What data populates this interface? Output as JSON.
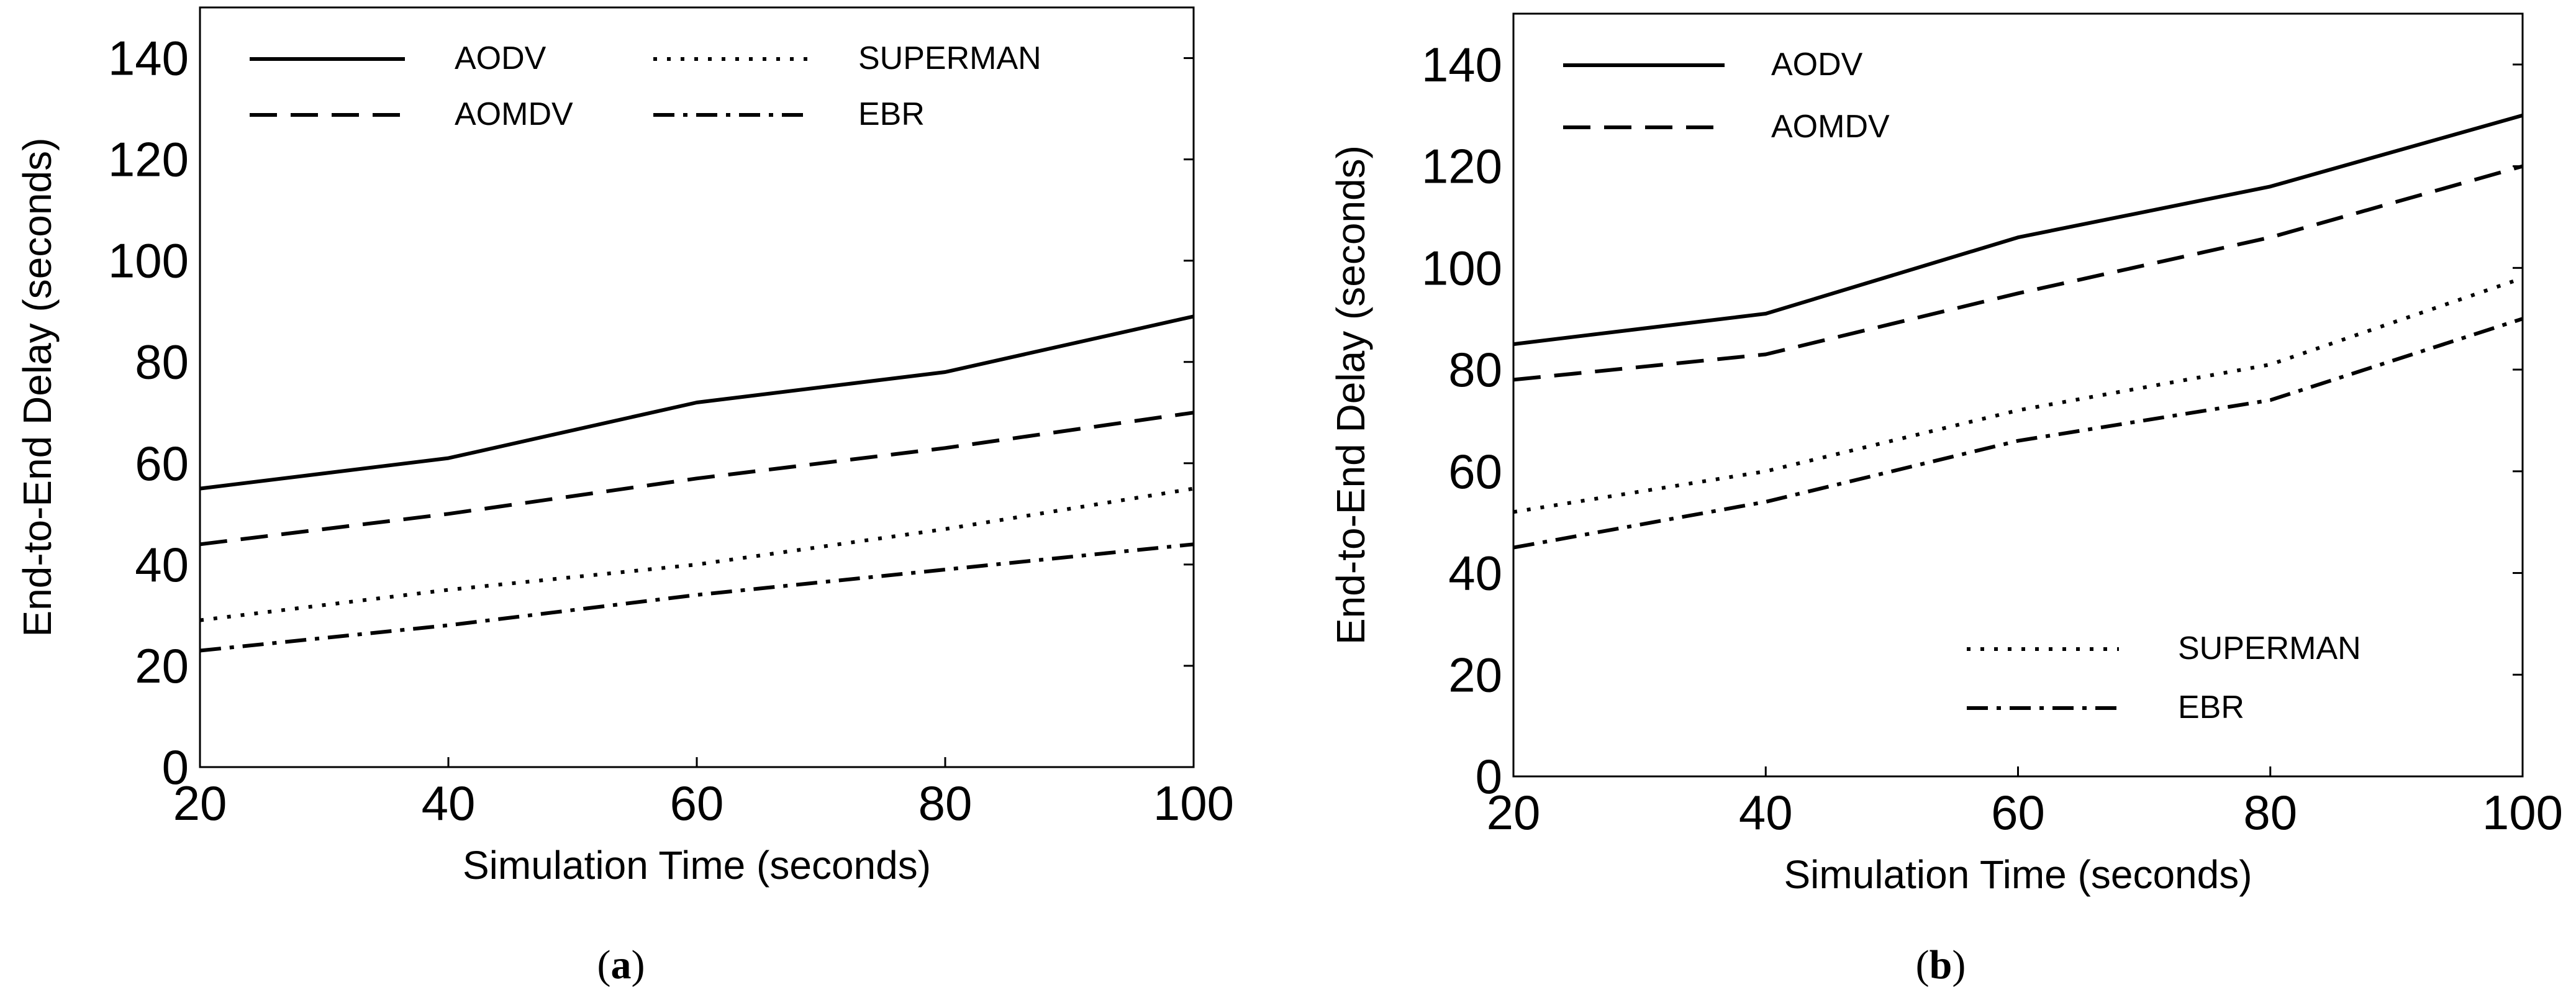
{
  "chart_data": [
    {
      "panel": "a",
      "type": "line",
      "caption": {
        "open": "(",
        "letter": "a",
        "close": ")"
      },
      "xlabel": "Simulation Time (seconds)",
      "ylabel": "End-to-End Delay (seconds)",
      "x": [
        20,
        40,
        60,
        80,
        100
      ],
      "xlim": [
        20,
        100
      ],
      "ylim": [
        0,
        150
      ],
      "xticks": [
        20,
        40,
        60,
        80,
        100
      ],
      "yticks": [
        0,
        20,
        40,
        60,
        80,
        100,
        120,
        140
      ],
      "legend_placement": "top-left, two columns",
      "series": [
        {
          "name": "AODV",
          "style": "solid",
          "values": [
            55,
            61,
            72,
            78,
            89
          ]
        },
        {
          "name": "AOMDV",
          "style": "dashed",
          "values": [
            44,
            50,
            57,
            63,
            70
          ]
        },
        {
          "name": "SUPERMAN",
          "style": "dotted",
          "values": [
            29,
            35,
            40,
            47,
            55
          ]
        },
        {
          "name": "EBR",
          "style": "dashdot",
          "values": [
            23,
            28,
            34,
            39,
            44
          ]
        }
      ]
    },
    {
      "panel": "b",
      "type": "line",
      "caption": {
        "open": "(",
        "letter": "b",
        "close": ")"
      },
      "xlabel": "Simulation Time (seconds)",
      "ylabel": "End-to-End Delay (seconds)",
      "x": [
        20,
        40,
        60,
        80,
        100
      ],
      "xlim": [
        20,
        100
      ],
      "ylim": [
        0,
        150
      ],
      "xticks": [
        20,
        40,
        60,
        80,
        100
      ],
      "yticks": [
        0,
        20,
        40,
        60,
        80,
        100,
        120,
        140
      ],
      "legend_placement": "top-left (AODV, AOMDV) and bottom-right (SUPERMAN, EBR)",
      "series": [
        {
          "name": "AODV",
          "style": "solid",
          "values": [
            85,
            91,
            106,
            116,
            130
          ]
        },
        {
          "name": "AOMDV",
          "style": "dashed",
          "values": [
            78,
            83,
            95,
            106,
            120
          ]
        },
        {
          "name": "SUPERMAN",
          "style": "dotted",
          "values": [
            52,
            60,
            72,
            81,
            98
          ]
        },
        {
          "name": "EBR",
          "style": "dashdot",
          "values": [
            45,
            54,
            66,
            74,
            90
          ]
        }
      ]
    }
  ]
}
